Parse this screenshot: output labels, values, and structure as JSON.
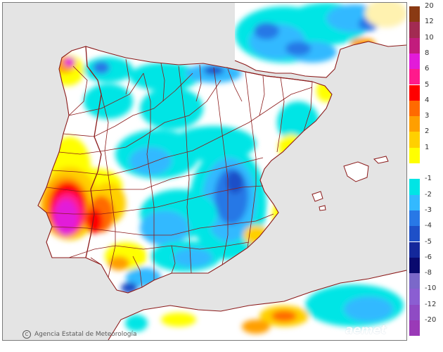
{
  "credit": {
    "symbol": "C",
    "text": "Agencia Estatal de Meteorología"
  },
  "brand": {
    "name": "aemet"
  },
  "legend": {
    "positive": [
      {
        "label": "20",
        "color": "#8a3a13"
      },
      {
        "label": "12",
        "color": "#a22b52"
      },
      {
        "label": "10",
        "color": "#c21c7d"
      },
      {
        "label": "8",
        "color": "#e21bd9"
      },
      {
        "label": "6",
        "color": "#ff1a8c"
      },
      {
        "label": "5",
        "color": "#ff0000"
      },
      {
        "label": "4",
        "color": "#ff6a00"
      },
      {
        "label": "3",
        "color": "#ff9f00"
      },
      {
        "label": "2",
        "color": "#ffd000"
      },
      {
        "label": "1",
        "color": "#ffff00"
      }
    ],
    "negative": [
      {
        "label": "-1",
        "color": "#00e5e5"
      },
      {
        "label": "-2",
        "color": "#33b9ff"
      },
      {
        "label": "-3",
        "color": "#2878e6"
      },
      {
        "label": "-4",
        "color": "#1e50c8"
      },
      {
        "label": "-5",
        "color": "#14289b"
      },
      {
        "label": "-6",
        "color": "#0a0a6e"
      },
      {
        "label": "-8",
        "color": "#7b68c9"
      },
      {
        "label": "-10",
        "color": "#8b5ed2"
      },
      {
        "label": "-12",
        "color": "#8f4bc4"
      },
      {
        "label": "-20",
        "color": "#9a3ab7"
      }
    ],
    "neutral_color": "#ffffff"
  },
  "colors": {
    "sea": "#e4e4e4",
    "land_base": "#ffffff",
    "border": "#8b1a1a"
  }
}
